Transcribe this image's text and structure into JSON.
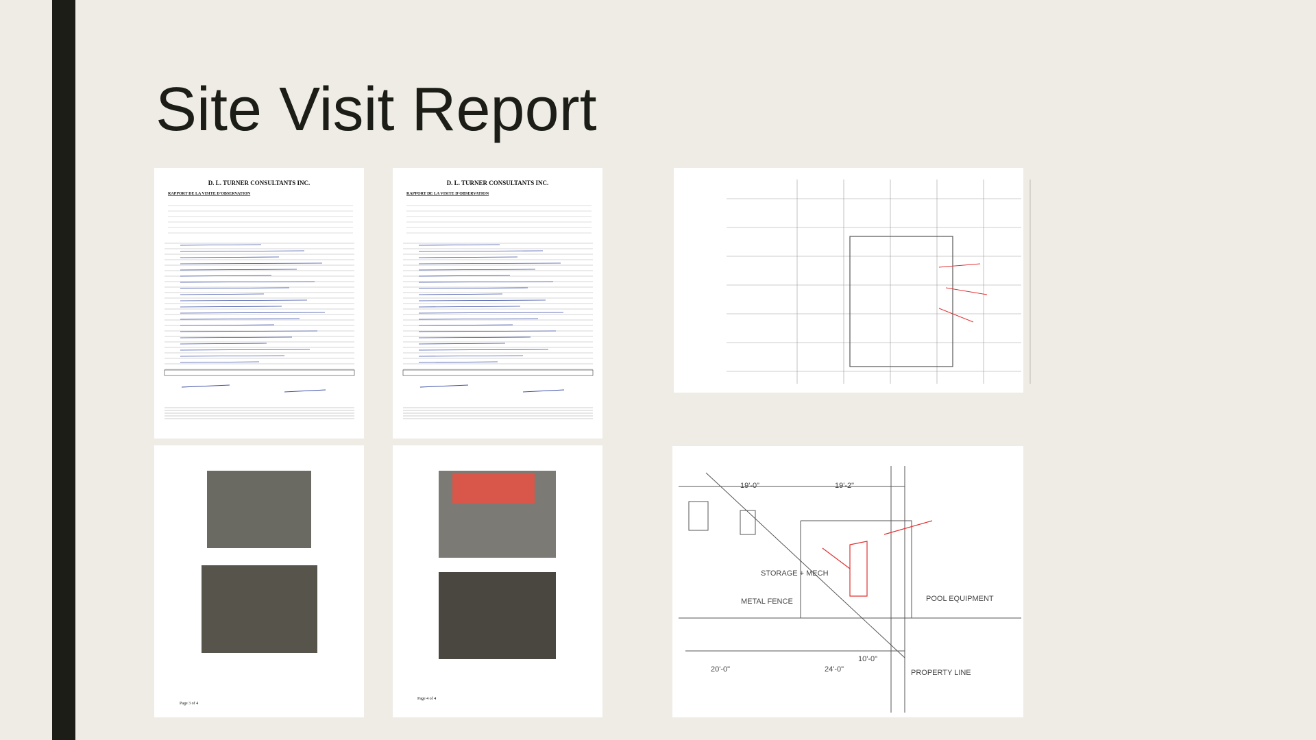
{
  "title": "Site Visit Report",
  "documents": [
    {
      "company": "D. L. TURNER CONSULTANTS INC.",
      "heading": "RAPPORT DE LA VISITE D'OBSERVATION"
    },
    {
      "company": "D. L. TURNER CONSULTANTS INC.",
      "heading": "RAPPORT DE LA VISITE D'OBSERVATION"
    }
  ],
  "photo_pages": [
    {
      "footer": "Page 3 of 4"
    },
    {
      "footer": "Page 4 of 4"
    }
  ],
  "drawing_labels": [
    "STORAGE + MECH",
    "METAL FENCE",
    "POOL EQUIPMENT",
    "PROPERTY LINE"
  ],
  "drawing_dims": [
    "19'-0\"",
    "19'-2\"",
    "20'-0\"",
    "24'-0\"",
    "10'-0\""
  ]
}
